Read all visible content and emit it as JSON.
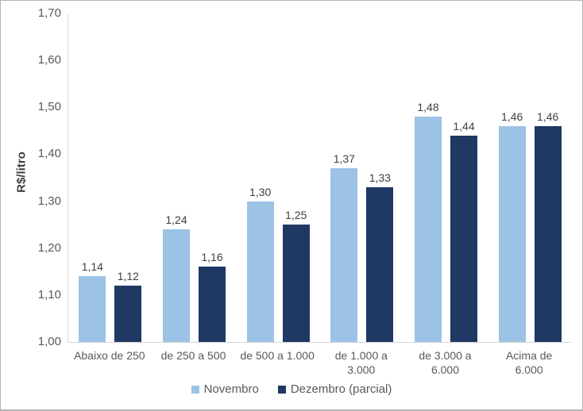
{
  "chart_data": {
    "type": "bar",
    "title": "",
    "ylabel": "R$/litro",
    "xlabel": "",
    "ylim": [
      1.0,
      1.7
    ],
    "ytick_step": 0.1,
    "grid": false,
    "legend_position": "bottom",
    "categories": [
      "Abaixo de 250",
      "de 250 a 500",
      "de 500 a 1.000",
      "de 1.000 a\n3.000",
      "de 3.000 a\n6.000",
      "Acima de\n6.000"
    ],
    "series": [
      {
        "name": "Novembro",
        "color": "#9CC2E5",
        "values": [
          1.14,
          1.24,
          1.3,
          1.37,
          1.48,
          1.46
        ],
        "labels": [
          "1,14",
          "1,24",
          "1,30",
          "1,37",
          "1,48",
          "1,46"
        ]
      },
      {
        "name": "Dezembro (parcial)",
        "color": "#1F3864",
        "values": [
          1.12,
          1.16,
          1.25,
          1.33,
          1.44,
          1.46
        ],
        "labels": [
          "1,12",
          "1,16",
          "1,25",
          "1,33",
          "1,44",
          "1,46"
        ]
      }
    ],
    "yticks": [
      {
        "v": 1.0,
        "label": "1,00"
      },
      {
        "v": 1.1,
        "label": "1,10"
      },
      {
        "v": 1.2,
        "label": "1,20"
      },
      {
        "v": 1.3,
        "label": "1,30"
      },
      {
        "v": 1.4,
        "label": "1,40"
      },
      {
        "v": 1.5,
        "label": "1,50"
      },
      {
        "v": 1.6,
        "label": "1,60"
      },
      {
        "v": 1.7,
        "label": "1,70"
      }
    ],
    "colors": {
      "axis_line": "#d6d6d6",
      "tick_text": "#595959",
      "data_label_text": "#404040",
      "frame_border": "#b4b4b4"
    }
  }
}
